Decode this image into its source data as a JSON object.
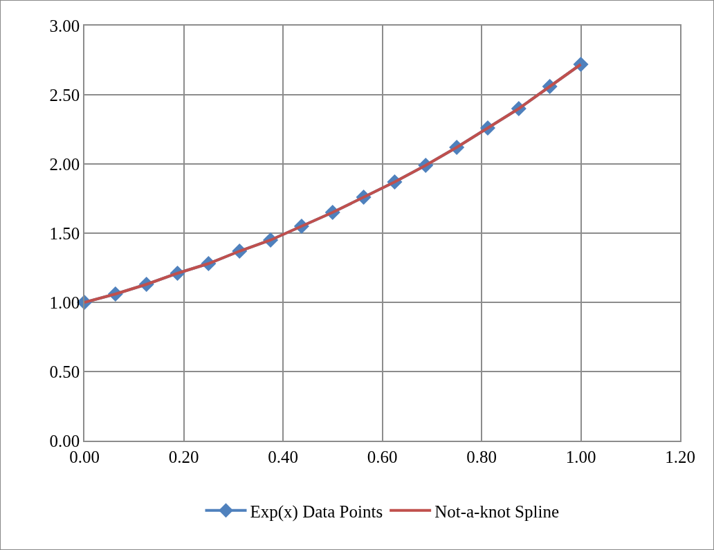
{
  "chart_data": {
    "type": "line",
    "x": [
      0,
      0.0625,
      0.125,
      0.1875,
      0.25,
      0.3125,
      0.375,
      0.4375,
      0.5,
      0.5625,
      0.625,
      0.6875,
      0.75,
      0.8125,
      0.875,
      0.9375,
      1
    ],
    "series": [
      {
        "name": "Exp(x) Data Points",
        "color": "#4f81bd",
        "marker": "diamond",
        "values": [
          1.0,
          1.06,
          1.13,
          1.21,
          1.28,
          1.37,
          1.45,
          1.55,
          1.65,
          1.76,
          1.87,
          1.99,
          2.12,
          2.26,
          2.4,
          2.56,
          2.72
        ]
      },
      {
        "name": "Not-a-knot Spline",
        "color": "#c0504d",
        "marker": "none",
        "values": [
          1.0,
          1.06,
          1.13,
          1.21,
          1.28,
          1.37,
          1.45,
          1.55,
          1.65,
          1.76,
          1.87,
          1.99,
          2.12,
          2.26,
          2.4,
          2.56,
          2.72
        ]
      }
    ],
    "xlim": [
      0,
      1.2
    ],
    "xticks": [
      {
        "value": 0,
        "label": "0.00"
      },
      {
        "value": 0.2,
        "label": "0.20"
      },
      {
        "value": 0.4,
        "label": "0.40"
      },
      {
        "value": 0.6,
        "label": "0.60"
      },
      {
        "value": 0.8,
        "label": "0.80"
      },
      {
        "value": 1,
        "label": "1.00"
      },
      {
        "value": 1.2,
        "label": "1.20"
      }
    ],
    "ylim": [
      0,
      3
    ],
    "yticks": [
      {
        "value": 0,
        "label": "0.00"
      },
      {
        "value": 0.5,
        "label": "0.50"
      },
      {
        "value": 1,
        "label": "1.00"
      },
      {
        "value": 1.5,
        "label": "1.50"
      },
      {
        "value": 2,
        "label": "2.00"
      },
      {
        "value": 2.5,
        "label": "2.50"
      },
      {
        "value": 3,
        "label": "3.00"
      }
    ],
    "grid": true,
    "legend": "bottom",
    "line_style": "solid"
  }
}
